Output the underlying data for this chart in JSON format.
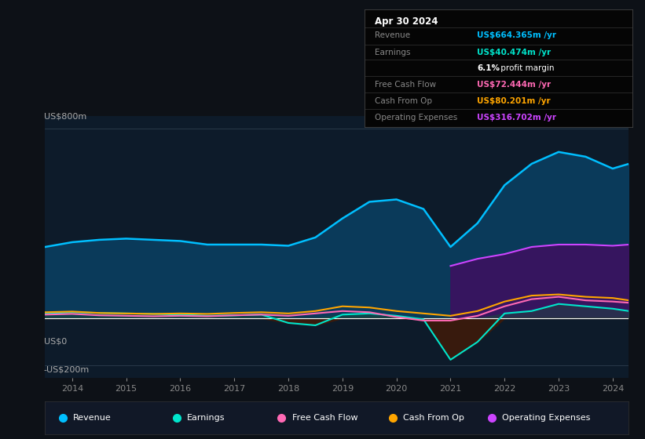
{
  "bg_color": "#0d1117",
  "plot_bg_color": "#0d1b2a",
  "title_date": "Apr 30 2024",
  "ylabel_top": "US$800m",
  "ylabel_zero": "US$0",
  "ylabel_bottom": "-US$200m",
  "x_years": [
    2013.5,
    2014,
    2014.5,
    2015,
    2015.5,
    2016,
    2016.5,
    2017,
    2017.5,
    2018,
    2018.5,
    2019,
    2019.5,
    2020,
    2020.5,
    2021,
    2021.5,
    2022,
    2022.5,
    2023,
    2023.5,
    2024,
    2024.3
  ],
  "revenue": [
    300,
    320,
    330,
    335,
    330,
    325,
    310,
    310,
    310,
    305,
    340,
    420,
    490,
    500,
    460,
    300,
    400,
    560,
    650,
    700,
    680,
    630,
    650
  ],
  "earnings": [
    20,
    25,
    22,
    20,
    18,
    15,
    10,
    12,
    15,
    -20,
    -30,
    15,
    20,
    10,
    -5,
    -175,
    -100,
    20,
    30,
    60,
    50,
    40,
    30
  ],
  "free_cash_flow": [
    15,
    18,
    12,
    10,
    8,
    10,
    8,
    12,
    15,
    10,
    20,
    30,
    25,
    5,
    -10,
    -10,
    10,
    50,
    80,
    90,
    75,
    70,
    65
  ],
  "cash_from_op": [
    25,
    28,
    22,
    20,
    18,
    20,
    18,
    22,
    25,
    20,
    30,
    50,
    45,
    30,
    20,
    10,
    30,
    70,
    95,
    100,
    90,
    85,
    75
  ],
  "op_expenses": [
    0,
    0,
    0,
    0,
    0,
    0,
    0,
    0,
    0,
    0,
    0,
    0,
    0,
    0,
    0,
    220,
    250,
    270,
    300,
    310,
    310,
    305,
    310
  ],
  "x_ticks": [
    2014,
    2015,
    2016,
    2017,
    2018,
    2019,
    2020,
    2021,
    2022,
    2023,
    2024
  ],
  "x_tick_labels": [
    "2014",
    "2015",
    "2016",
    "2017",
    "2018",
    "2019",
    "2020",
    "2021",
    "2022",
    "2023",
    "2024"
  ],
  "legend_items": [
    {
      "label": "Revenue",
      "color": "#00bfff"
    },
    {
      "label": "Earnings",
      "color": "#00e5cc"
    },
    {
      "label": "Free Cash Flow",
      "color": "#ff69b4"
    },
    {
      "label": "Cash From Op",
      "color": "#ffa500"
    },
    {
      "label": "Operating Expenses",
      "color": "#cc44ff"
    }
  ],
  "revenue_color": "#00bfff",
  "earnings_color": "#00e5cc",
  "free_cash_flow_color": "#ff69b4",
  "cash_from_op_color": "#ffa500",
  "op_expenses_color": "#cc44ff",
  "revenue_fill_color": "#0a3d5f",
  "earnings_neg_fill_color": "#3d1a0a",
  "op_expenses_fill_color": "#3d1060",
  "ylim": [
    -250,
    850
  ],
  "info_rows": [
    {
      "label": "Revenue",
      "value": "US$664.365m /yr",
      "value_color": "#00bfff"
    },
    {
      "label": "Earnings",
      "value": "US$40.474m /yr",
      "value_color": "#00e5cc"
    },
    {
      "label": "",
      "value": "6.1% profit margin",
      "value_color": "#ffffff"
    },
    {
      "label": "Free Cash Flow",
      "value": "US$72.444m /yr",
      "value_color": "#ff69b4"
    },
    {
      "label": "Cash From Op",
      "value": "US$80.201m /yr",
      "value_color": "#ffa500"
    },
    {
      "label": "Operating Expenses",
      "value": "US$316.702m /yr",
      "value_color": "#cc44ff"
    }
  ]
}
